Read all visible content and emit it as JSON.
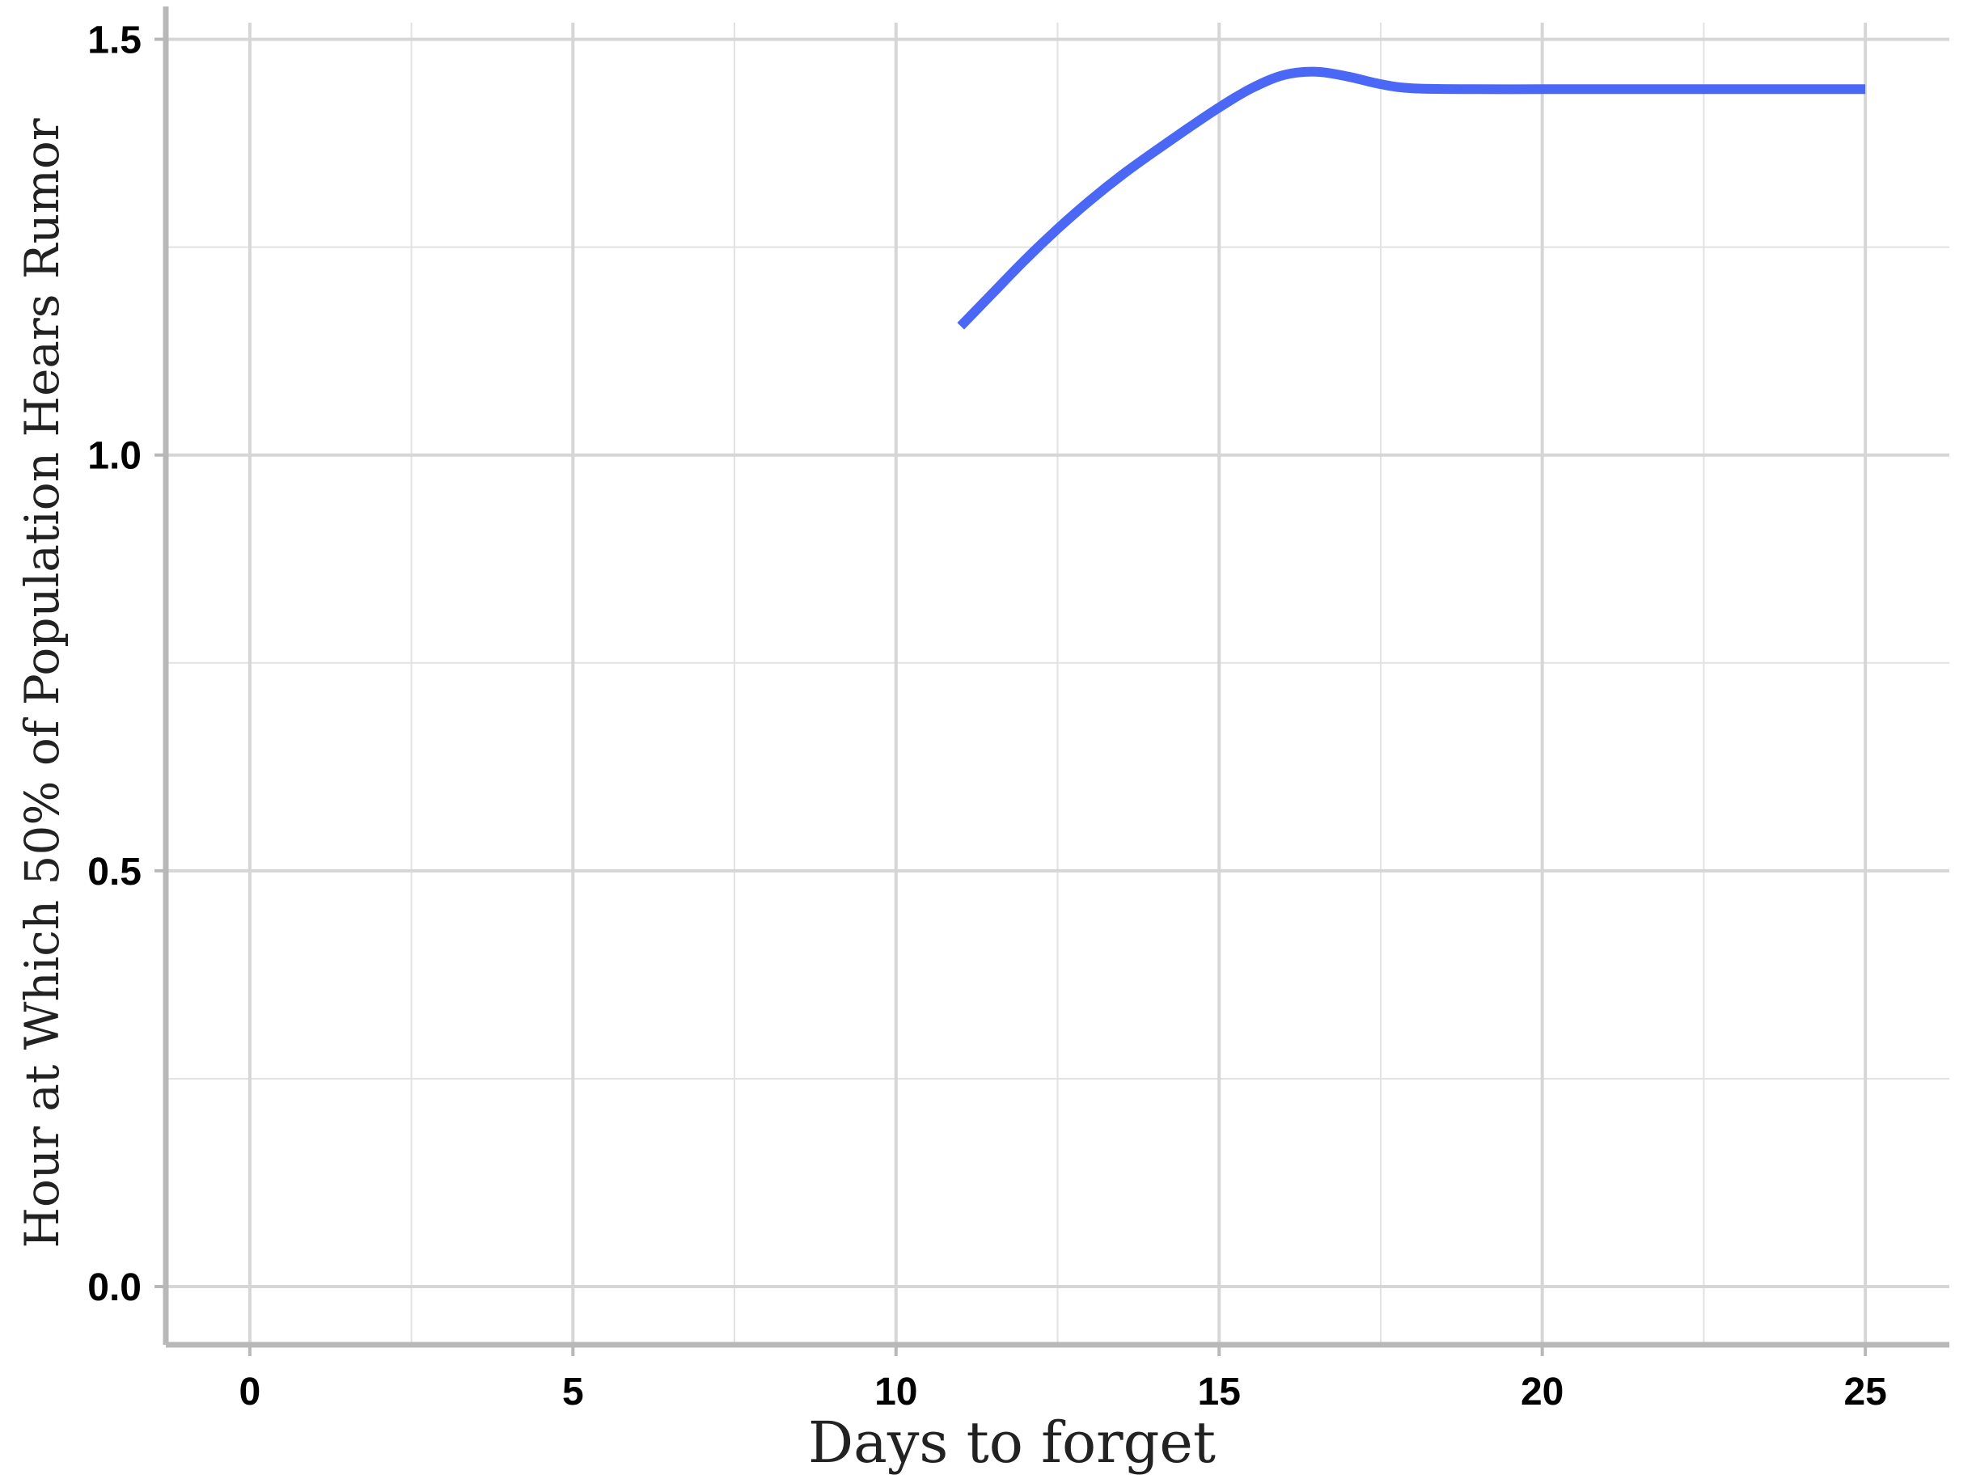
{
  "chart_data": {
    "type": "line",
    "title": "",
    "xlabel": "Days to forget",
    "ylabel": "Hour at Which 50% of Population Hears Rumor",
    "xlim": [
      -1.3,
      26.3
    ],
    "ylim": [
      -0.07,
      1.52
    ],
    "x_ticks": [
      0,
      5,
      10,
      15,
      20,
      25
    ],
    "x_tick_labels": [
      "0",
      "5",
      "10",
      "15",
      "20",
      "25"
    ],
    "y_ticks": [
      0.0,
      0.5,
      1.0,
      1.5
    ],
    "y_tick_labels": [
      "0.0",
      "0.5",
      "1.0",
      "1.5"
    ],
    "grid": true,
    "legend": "none",
    "series": [
      {
        "color": "#4a68f5",
        "x": [
          11,
          11.5,
          12,
          12.5,
          13,
          13.5,
          14,
          14.5,
          15,
          15.5,
          16,
          16.5,
          17,
          17.5,
          18,
          19,
          20,
          21,
          22,
          23,
          24,
          25
        ],
        "y": [
          1.155,
          1.195,
          1.235,
          1.272,
          1.306,
          1.337,
          1.365,
          1.392,
          1.418,
          1.441,
          1.457,
          1.461,
          1.455,
          1.446,
          1.441,
          1.44,
          1.44,
          1.44,
          1.44,
          1.44,
          1.44,
          1.44
        ]
      }
    ]
  }
}
